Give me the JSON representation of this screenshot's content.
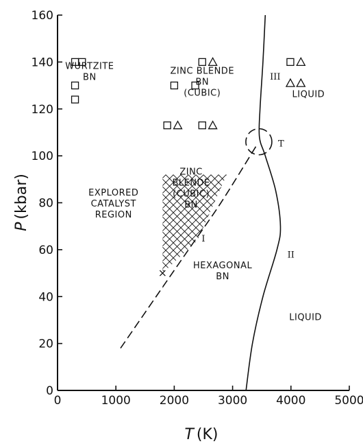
{
  "chart_data": {
    "type": "phase-diagram",
    "xlabel": "T (K)",
    "xlabel_symbol": "T",
    "xlabel_unit": "(K)",
    "ylabel": "P (kbar)",
    "ylabel_symbol": "P",
    "ylabel_unit": "(kbar)",
    "xlim": [
      0,
      5000
    ],
    "ylim": [
      0,
      160
    ],
    "xticks": [
      0,
      1000,
      2000,
      3000,
      4000,
      5000
    ],
    "yticks": [
      0,
      20,
      40,
      60,
      80,
      100,
      120,
      140,
      160
    ],
    "grid": false,
    "curves": [
      {
        "style": "solid",
        "points": [
          [
            3230,
            0
          ],
          [
            3340,
            20
          ],
          [
            3520,
            40
          ],
          [
            3760,
            60
          ],
          [
            3820,
            70
          ],
          [
            3740,
            85
          ],
          [
            3560,
            100
          ],
          [
            3460,
            108
          ],
          [
            3470,
            120
          ],
          [
            3520,
            140
          ],
          [
            3560,
            160
          ]
        ]
      },
      {
        "style": "dashed",
        "points": [
          [
            1080,
            18
          ],
          [
            1800,
            44
          ],
          [
            2300,
            62
          ],
          [
            2800,
            80
          ],
          [
            3400,
            104
          ]
        ]
      }
    ],
    "triple_point": {
      "x": 3450,
      "y": 106,
      "label": "T"
    },
    "cubic_region_polygon": [
      [
        1800,
        50
      ],
      [
        1800,
        92
      ],
      [
        2900,
        92
      ],
      [
        2400,
        64
      ]
    ],
    "regions": [
      {
        "lines": [
          "WURTZITE",
          "BN"
        ],
        "x": 550,
        "y": 137
      },
      {
        "lines": [
          "ZINC BLENDE",
          "BN",
          "(CUBIC)"
        ],
        "x": 2480,
        "y": 135
      },
      {
        "lines": [
          "LIQUID"
        ],
        "x": 4300,
        "y": 125
      },
      {
        "lines": [
          "ZINC",
          "BLENDE",
          "(CUBIC)",
          "BN"
        ],
        "x": 2290,
        "y": 92
      },
      {
        "lines": [
          "EXPLORED",
          "CATALYST",
          "REGION"
        ],
        "x": 960,
        "y": 83
      },
      {
        "lines": [
          "HEXAGONAL",
          "BN"
        ],
        "x": 2830,
        "y": 52
      },
      {
        "lines": [
          "LIQUID"
        ],
        "x": 4250,
        "y": 30
      }
    ],
    "curve_labels": [
      {
        "text": "I",
        "x": 2500,
        "y": 65
      },
      {
        "text": "II",
        "x": 4000,
        "y": 58
      },
      {
        "text": "III",
        "x": 3730,
        "y": 134
      }
    ],
    "markers": [
      {
        "shape": "square",
        "x": 300,
        "y": 140
      },
      {
        "shape": "square",
        "x": 420,
        "y": 140
      },
      {
        "shape": "square",
        "x": 300,
        "y": 130
      },
      {
        "shape": "square",
        "x": 300,
        "y": 124
      },
      {
        "shape": "square",
        "x": 2000,
        "y": 130
      },
      {
        "shape": "square",
        "x": 2360,
        "y": 130
      },
      {
        "shape": "square",
        "x": 2480,
        "y": 140
      },
      {
        "shape": "triangle",
        "x": 2660,
        "y": 140
      },
      {
        "shape": "square",
        "x": 1880,
        "y": 113
      },
      {
        "shape": "triangle",
        "x": 2060,
        "y": 113
      },
      {
        "shape": "square",
        "x": 2480,
        "y": 113
      },
      {
        "shape": "triangle",
        "x": 2660,
        "y": 113
      },
      {
        "shape": "square",
        "x": 3990,
        "y": 140
      },
      {
        "shape": "triangle",
        "x": 4170,
        "y": 140
      },
      {
        "shape": "triangle",
        "x": 3990,
        "y": 131
      },
      {
        "shape": "triangle",
        "x": 4170,
        "y": 131
      },
      {
        "shape": "x",
        "x": 1800,
        "y": 50
      }
    ]
  }
}
